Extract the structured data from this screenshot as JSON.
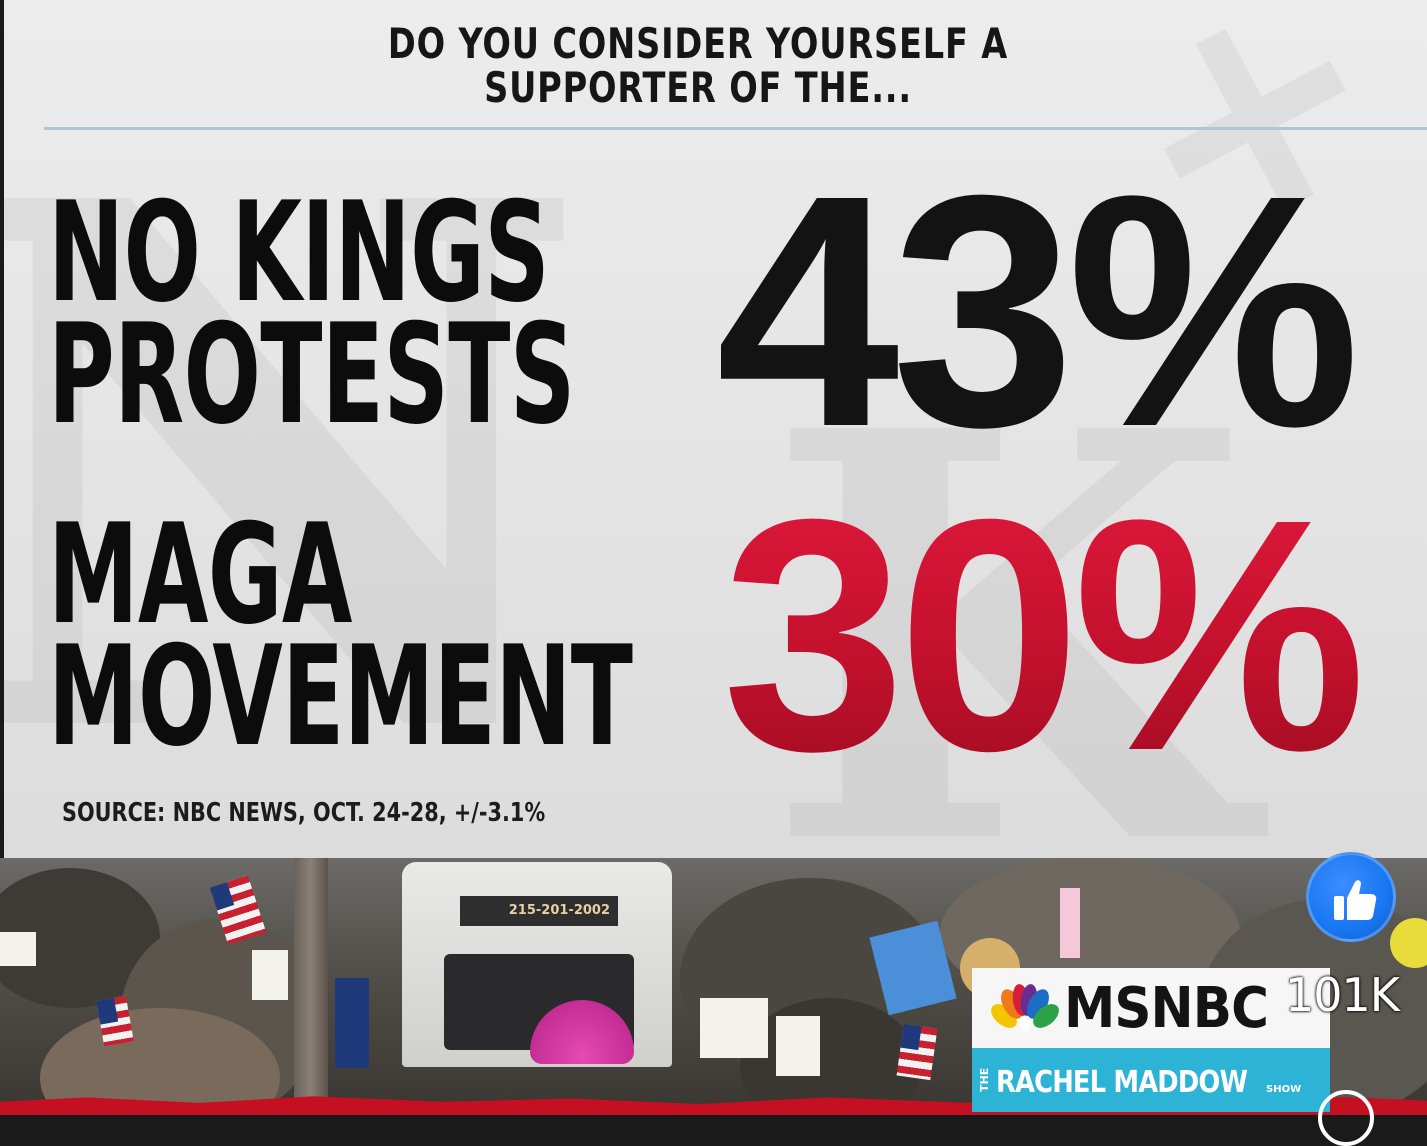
{
  "graphic": {
    "question": [
      "DO YOU CONSIDER YOURSELF A",
      "SUPPORTER OF THE..."
    ],
    "items": [
      {
        "label_lines": [
          "NO KINGS",
          "PROTESTS"
        ],
        "percent": "43%",
        "color": "#131313"
      },
      {
        "label_lines": [
          "MAGA",
          "MOVEMENT"
        ],
        "percent": "30%",
        "color": "#c8102e"
      }
    ],
    "source": "SOURCE: NBC NEWS, OCT. 24-28, +/-3.1%"
  },
  "photo": {
    "truck_sign": "215-201-2002"
  },
  "network": {
    "name": "MSNBC",
    "show_prefix": "THE",
    "show_name": "RACHEL MADDOW",
    "show_suffix": "SHOW",
    "brand_color": "#2cb3d6"
  },
  "reactions": {
    "like_icon": "thumbs-up-icon",
    "like_count": "101K",
    "like_color": "#1877f2"
  }
}
